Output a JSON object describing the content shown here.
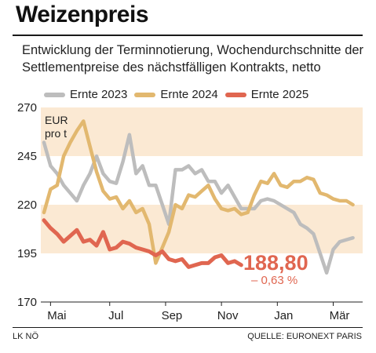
{
  "header": {
    "title": "Weizenpreis",
    "subtitle": "Entwicklung der Terminnotierung, Wochendurchschnitte der Settlementpreise des nächstfälligen Kontrakts, netto"
  },
  "footer": {
    "left": "LK NÖ",
    "right": "QUELLE: EURONEXT PARIS"
  },
  "chart_data": {
    "type": "line",
    "title": "Weizenpreis",
    "ylabel": "EUR pro t",
    "ylim": [
      170,
      270
    ],
    "yticks": [
      170,
      195,
      220,
      245,
      270
    ],
    "xlim": [
      0,
      48
    ],
    "x_ticks": [
      {
        "label": "Mai",
        "x": 1
      },
      {
        "label": "Jul",
        "x": 10
      },
      {
        "label": "Sep",
        "x": 18.5
      },
      {
        "label": "Nov",
        "x": 27
      },
      {
        "label": "Jan",
        "x": 35.5
      },
      {
        "label": "Mär",
        "x": 44
      }
    ],
    "bands": [
      [
        195,
        220
      ],
      [
        245,
        270
      ]
    ],
    "band_color": "#fbe9d3",
    "legend_position": "top",
    "series": [
      {
        "name": "Ernte 2023",
        "color": "#bdbdbd",
        "x": [
          0,
          1,
          2,
          3,
          4,
          5,
          6,
          7,
          8,
          9,
          10,
          11,
          12,
          13,
          14,
          15,
          16,
          17,
          18,
          19,
          20,
          21,
          22,
          23,
          24,
          25,
          26,
          27,
          28,
          29,
          30,
          31,
          32,
          33,
          34,
          35,
          36,
          37,
          38,
          39,
          40,
          41,
          42,
          43,
          44,
          45,
          46,
          47
        ],
        "values": [
          252,
          240,
          236,
          230,
          226,
          222,
          230,
          236,
          245,
          236,
          232,
          231,
          242,
          256,
          236,
          240,
          230,
          230,
          220,
          210,
          238,
          238,
          240,
          236,
          238,
          232,
          232,
          226,
          230,
          224,
          218,
          218,
          218,
          222,
          223,
          222,
          220,
          218,
          216,
          210,
          208,
          205,
          195,
          185,
          197,
          201,
          202,
          203
        ]
      },
      {
        "name": "Ernte 2024",
        "color": "#e2b86f",
        "x": [
          0,
          1,
          2,
          3,
          4,
          5,
          6,
          7,
          8,
          9,
          10,
          11,
          12,
          13,
          14,
          15,
          16,
          17,
          18,
          19,
          20,
          21,
          22,
          23,
          24,
          25,
          26,
          27,
          28,
          29,
          30,
          31,
          32,
          33,
          34,
          35,
          36,
          37,
          38,
          39,
          40,
          41,
          42,
          43,
          44,
          45,
          46,
          47
        ],
        "values": [
          216,
          228,
          230,
          245,
          252,
          258,
          263,
          250,
          237,
          227,
          223,
          224,
          218,
          222,
          216,
          218,
          210,
          190,
          198,
          206,
          220,
          218,
          225,
          224,
          227,
          230,
          223,
          218,
          217,
          218,
          215,
          216,
          225,
          232,
          231,
          236,
          230,
          229,
          232,
          232,
          234,
          233,
          226,
          225,
          223,
          222,
          222,
          220
        ]
      },
      {
        "name": "Ernte 2025",
        "color": "#e06650",
        "x": [
          0,
          1,
          2,
          3,
          4,
          5,
          6,
          7,
          8,
          9,
          10,
          11,
          12,
          13,
          14,
          15,
          16,
          17,
          18,
          19,
          20,
          21,
          22,
          23,
          24,
          25,
          26,
          27,
          28,
          29,
          30
        ],
        "values": [
          212,
          208,
          205,
          201,
          204,
          207,
          201,
          202,
          199,
          206,
          197,
          198,
          201,
          200,
          198,
          197,
          196,
          194,
          196,
          192,
          191,
          192,
          188,
          189,
          190,
          190,
          193,
          194,
          190,
          191,
          189
        ]
      }
    ],
    "annotations": {
      "value": "188,80",
      "change": "– 0,63 %"
    }
  }
}
